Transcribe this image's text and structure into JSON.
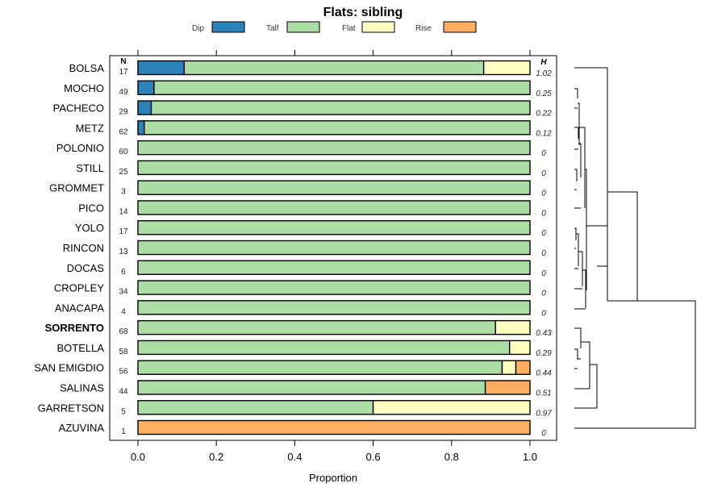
{
  "chart_data": {
    "type": "bar",
    "stacked": true,
    "orientation": "horizontal",
    "title": "Flats: sibling",
    "xlabel": "Proportion",
    "ylabel": "",
    "xlim": [
      0,
      1
    ],
    "x_ticks": [
      0,
      0.2,
      0.4,
      0.6,
      0.8,
      1
    ],
    "x_tick_labels": [
      "0.0",
      "0.2",
      "0.4",
      "0.6",
      "0.8",
      "1.0"
    ],
    "legend_position": "top",
    "legend": [
      {
        "name": "Dip",
        "color": "#2b83ba"
      },
      {
        "name": "Talf",
        "color": "#abdda4"
      },
      {
        "name": "Flat",
        "color": "#ffffbf"
      },
      {
        "name": "Rise",
        "color": "#fdae61"
      }
    ],
    "n_header": "N",
    "h_header": "H",
    "highlighted_category": "SORRENTO",
    "categories": [
      "BOLSA",
      "MOCHO",
      "PACHECO",
      "METZ",
      "POLONIO",
      "STILL",
      "GROMMET",
      "PICO",
      "YOLO",
      "RINCON",
      "DOCAS",
      "CROPLEY",
      "ANACAPA",
      "SORRENTO",
      "BOTELLA",
      "SAN EMIGDIO",
      "SALINAS",
      "GARRETSON",
      "AZUVINA"
    ],
    "n_values": [
      "17",
      "49",
      "29",
      "62",
      "60",
      "25",
      "3",
      "14",
      "17",
      "13",
      "6",
      "34",
      "4",
      "68",
      "58",
      "56",
      "44",
      "5",
      "1"
    ],
    "h_values": [
      "1.02",
      "0.25",
      "0.22",
      "0.12",
      "0",
      "0",
      "0",
      "0",
      "0",
      "0",
      "0",
      "0",
      "0",
      "0.43",
      "0.29",
      "0.44",
      "0.51",
      "0.97",
      "0"
    ],
    "series": [
      {
        "name": "Dip",
        "values": [
          0.118,
          0.041,
          0.034,
          0.016,
          0,
          0,
          0,
          0,
          0,
          0,
          0,
          0,
          0,
          0,
          0,
          0,
          0,
          0,
          0
        ]
      },
      {
        "name": "Talf",
        "values": [
          0.764,
          0.959,
          0.966,
          0.984,
          1,
          1,
          1,
          1,
          1,
          1,
          1,
          1,
          1,
          0.912,
          0.948,
          0.929,
          0.886,
          0.6,
          0
        ]
      },
      {
        "name": "Flat",
        "values": [
          0.118,
          0,
          0,
          0,
          0,
          0,
          0,
          0,
          0,
          0,
          0,
          0,
          0,
          0.088,
          0.052,
          0.035,
          0,
          0.4,
          0
        ]
      },
      {
        "name": "Rise",
        "values": [
          0,
          0,
          0,
          0,
          0,
          0,
          0,
          0,
          0,
          0,
          0,
          0,
          0,
          0,
          0,
          0.036,
          0.114,
          0,
          1
        ]
      }
    ]
  }
}
